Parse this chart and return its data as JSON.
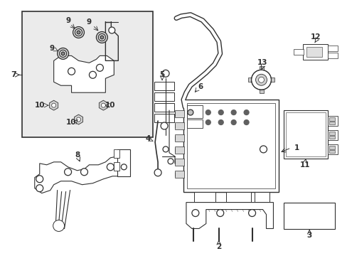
{
  "bg_color": "#ffffff",
  "lc": "#303030",
  "inset_fill": "#e8e8e8",
  "figsize": [
    4.89,
    3.6
  ],
  "dpi": 100
}
